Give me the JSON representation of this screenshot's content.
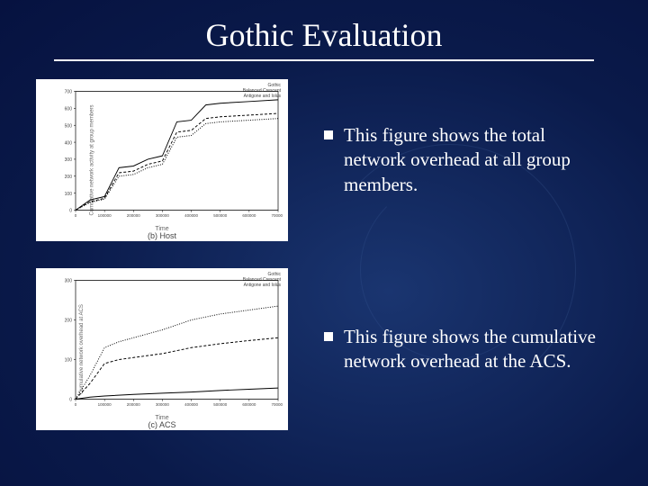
{
  "slide": {
    "title": "Gothic Evaluation",
    "background_color": "#0a1f5c",
    "text_color": "#ffffff",
    "title_fontsize": 36
  },
  "bullets": [
    {
      "text": "This figure shows the total network overhead at all group members."
    },
    {
      "text": "This figure shows the cumulative network overhead at the ACS."
    }
  ],
  "chart_top": {
    "type": "line",
    "caption": "(b) Host",
    "xlabel": "Time",
    "ylabel": "Cumulative network activity at group members",
    "legend": [
      "Gothic",
      "Balanced Crescent",
      "Antigone and Iolus"
    ],
    "xlim": [
      0,
      700000
    ],
    "ylim": [
      0,
      700
    ],
    "xtick_step": 100000,
    "ytick_step": 100,
    "background_color": "#ffffff",
    "grid_color": "#cccccc",
    "line_color": "#000000",
    "series": [
      {
        "name": "Gothic",
        "dash": "solid",
        "points": [
          [
            0,
            0
          ],
          [
            50000,
            60
          ],
          [
            100000,
            80
          ],
          [
            150000,
            250
          ],
          [
            200000,
            260
          ],
          [
            250000,
            300
          ],
          [
            300000,
            320
          ],
          [
            350000,
            520
          ],
          [
            400000,
            530
          ],
          [
            450000,
            620
          ],
          [
            500000,
            630
          ],
          [
            600000,
            640
          ],
          [
            700000,
            650
          ]
        ]
      },
      {
        "name": "Balanced Crescent",
        "dash": "dashed",
        "points": [
          [
            0,
            0
          ],
          [
            50000,
            50
          ],
          [
            100000,
            70
          ],
          [
            150000,
            220
          ],
          [
            200000,
            230
          ],
          [
            250000,
            270
          ],
          [
            300000,
            290
          ],
          [
            350000,
            460
          ],
          [
            400000,
            470
          ],
          [
            450000,
            540
          ],
          [
            500000,
            550
          ],
          [
            600000,
            560
          ],
          [
            700000,
            570
          ]
        ]
      },
      {
        "name": "Antigone and Iolus",
        "dash": "dotted",
        "points": [
          [
            0,
            0
          ],
          [
            50000,
            45
          ],
          [
            100000,
            65
          ],
          [
            150000,
            200
          ],
          [
            200000,
            210
          ],
          [
            250000,
            250
          ],
          [
            300000,
            270
          ],
          [
            350000,
            430
          ],
          [
            400000,
            440
          ],
          [
            450000,
            510
          ],
          [
            500000,
            520
          ],
          [
            600000,
            530
          ],
          [
            700000,
            540
          ]
        ]
      }
    ]
  },
  "chart_bottom": {
    "type": "line",
    "caption": "(c) ACS",
    "xlabel": "Time",
    "ylabel": "Cumulative network overhead at ACS",
    "legend": [
      "Gothic",
      "Balanced Crescent",
      "Antigone and Iolus"
    ],
    "xlim": [
      0,
      700000
    ],
    "ylim": [
      0,
      300
    ],
    "xtick_step": 100000,
    "ytick_step": 100,
    "background_color": "#ffffff",
    "grid_color": "#cccccc",
    "line_color": "#000000",
    "series": [
      {
        "name": "Gothic",
        "dash": "solid",
        "points": [
          [
            0,
            0
          ],
          [
            50000,
            5
          ],
          [
            100000,
            8
          ],
          [
            200000,
            12
          ],
          [
            300000,
            15
          ],
          [
            400000,
            18
          ],
          [
            500000,
            22
          ],
          [
            600000,
            25
          ],
          [
            700000,
            28
          ]
        ]
      },
      {
        "name": "Balanced Crescent",
        "dash": "dashed",
        "points": [
          [
            0,
            0
          ],
          [
            50000,
            40
          ],
          [
            100000,
            90
          ],
          [
            150000,
            100
          ],
          [
            200000,
            105
          ],
          [
            300000,
            115
          ],
          [
            400000,
            130
          ],
          [
            500000,
            140
          ],
          [
            600000,
            148
          ],
          [
            700000,
            155
          ]
        ]
      },
      {
        "name": "Antigone and Iolus",
        "dash": "dotted",
        "points": [
          [
            0,
            0
          ],
          [
            50000,
            60
          ],
          [
            100000,
            130
          ],
          [
            150000,
            145
          ],
          [
            200000,
            155
          ],
          [
            300000,
            175
          ],
          [
            400000,
            200
          ],
          [
            500000,
            215
          ],
          [
            600000,
            225
          ],
          [
            700000,
            235
          ]
        ]
      }
    ]
  }
}
